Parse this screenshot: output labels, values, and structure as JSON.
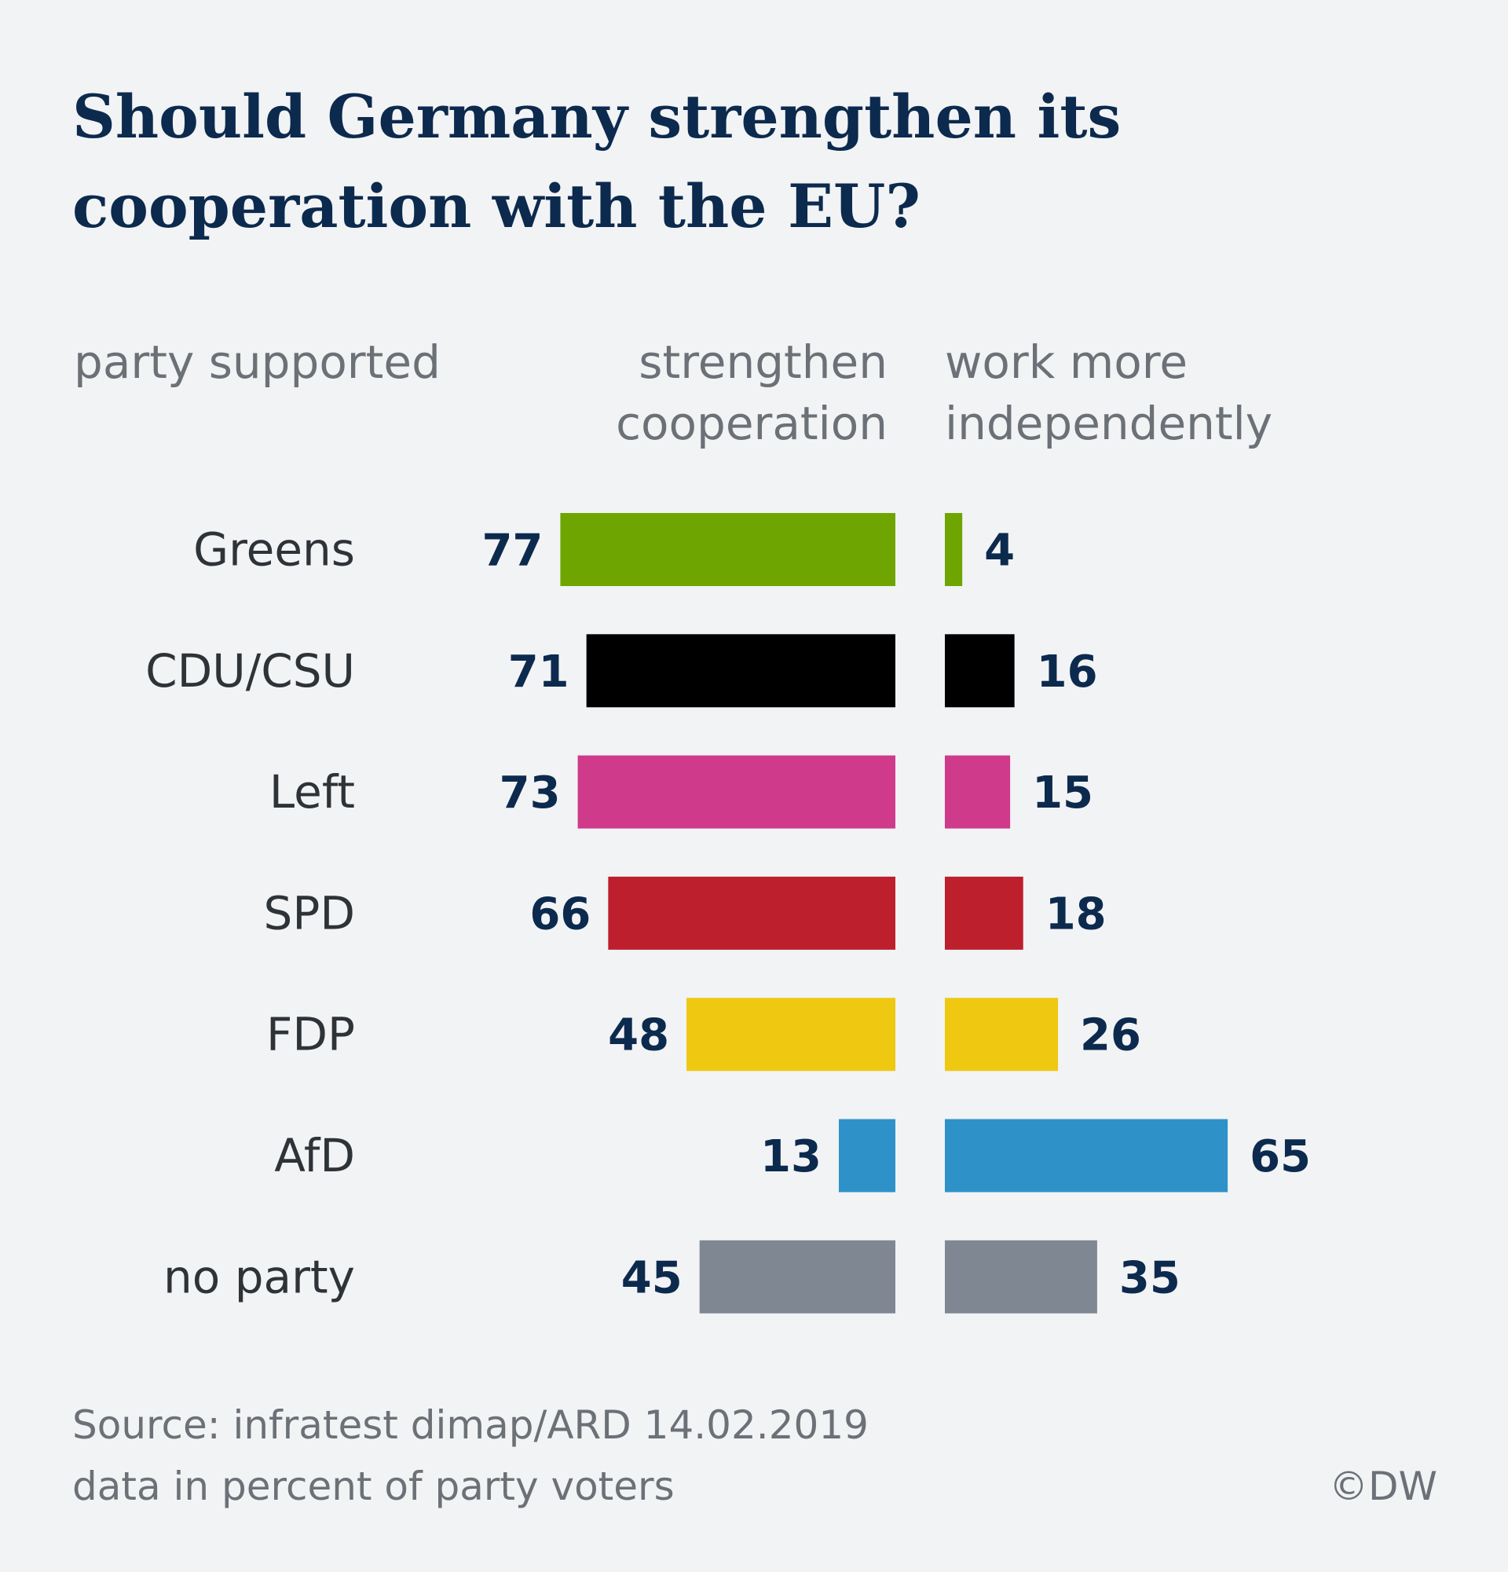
{
  "title": "Should Germany strengthen its cooperation with the EU?",
  "column_headers": {
    "party": "party supported",
    "left_line1": "strengthen",
    "left_line2": "cooperation",
    "right_line1": "work more",
    "right_line2": "independently"
  },
  "footer": {
    "source": "Source: infratest dimap/ARD 14.02.2019",
    "note": "data in percent of party voters",
    "credit": "©DW"
  },
  "chart_data": {
    "type": "bar",
    "orientation": "horizontal-diverging",
    "categories": [
      "Greens",
      "CDU/CSU",
      "Left",
      "SPD",
      "FDP",
      "AfD",
      "no party"
    ],
    "colors": [
      "#6fa500",
      "#000000",
      "#cf3a8b",
      "#bd1f2d",
      "#efc812",
      "#2e92c9",
      "#7f8892"
    ],
    "series": [
      {
        "name": "strengthen cooperation",
        "values": [
          77,
          71,
          73,
          66,
          48,
          13,
          45
        ]
      },
      {
        "name": "work more independently",
        "values": [
          4,
          16,
          15,
          18,
          26,
          65,
          35
        ]
      }
    ],
    "unit": "percent"
  }
}
